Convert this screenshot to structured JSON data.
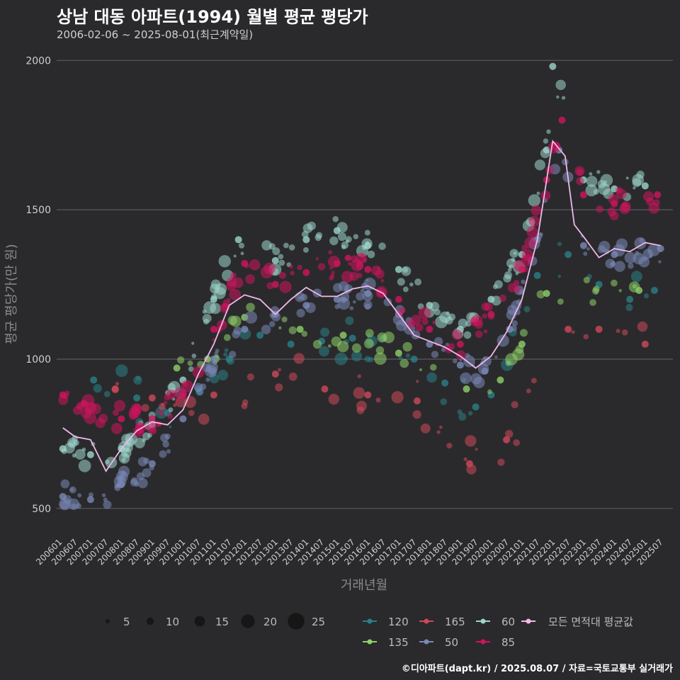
{
  "title": "상남 대동 아파트(1994) 월별 평균 평당가",
  "subtitle": "2006-02-06 ~ 2025-08-01(최근계약일)",
  "credit": "©디아파트(dapt.kr) / 2025.08.07 / 자료=국토교통부 실거래가",
  "chart_data": {
    "type": "scatter",
    "title": "상남 대동 아파트(1994) 월별 평균 평당가",
    "xlabel": "거래년월",
    "ylabel": "평균 평당가(만 원)",
    "ylim": [
      400,
      2060
    ],
    "yticks": [
      500,
      1000,
      1500,
      2000
    ],
    "xticks": [
      "200601",
      "200607",
      "200701",
      "200707",
      "200801",
      "200807",
      "200901",
      "200907",
      "201001",
      "201007",
      "201101",
      "201107",
      "201201",
      "201207",
      "201301",
      "201307",
      "201401",
      "201407",
      "201501",
      "201507",
      "201601",
      "201607",
      "201701",
      "201707",
      "201801",
      "201807",
      "201901",
      "201907",
      "202001",
      "202007",
      "202101",
      "202107",
      "202201",
      "202207",
      "202301",
      "202307",
      "202401",
      "202407",
      "202501",
      "202507"
    ],
    "size_legend": [
      5,
      10,
      15,
      20,
      25
    ],
    "series": [
      {
        "name": "120",
        "color": "#2a7f88",
        "values": [
          [
            2007.1,
            930
          ],
          [
            2008.5,
            870
          ],
          [
            2009.5,
            820
          ],
          [
            2010.5,
            900
          ],
          [
            2011.5,
            1000
          ],
          [
            2012.5,
            1080
          ],
          [
            2013.5,
            1050
          ],
          [
            2014.5,
            1060
          ],
          [
            2015.5,
            1070
          ],
          [
            2016.5,
            1070
          ],
          [
            2017.5,
            1000
          ],
          [
            2018.5,
            920
          ],
          [
            2019.5,
            840
          ],
          [
            2020.0,
            880
          ],
          [
            2021.5,
            1280
          ],
          [
            2022.5,
            1350
          ],
          [
            2023.5,
            1250
          ],
          [
            2024.5,
            1200
          ],
          [
            2025.3,
            1230
          ]
        ]
      },
      {
        "name": "135",
        "color": "#8fd16a",
        "values": [
          [
            2009.8,
            970
          ],
          [
            2010.8,
            1000
          ],
          [
            2012.0,
            1140
          ],
          [
            2013.8,
            1100
          ],
          [
            2015.2,
            1080
          ],
          [
            2017.0,
            1020
          ],
          [
            2019.2,
            900
          ],
          [
            2020.3,
            930
          ],
          [
            2021.0,
            1050
          ],
          [
            2021.8,
            1220
          ],
          [
            2024.8,
            1230
          ]
        ]
      },
      {
        "name": "165",
        "color": "#d0485a",
        "values": [
          [
            2007.8,
            900
          ],
          [
            2009.0,
            870
          ],
          [
            2011.0,
            880
          ],
          [
            2013.0,
            950
          ],
          [
            2014.6,
            900
          ],
          [
            2016.0,
            880
          ],
          [
            2017.6,
            860
          ],
          [
            2019.3,
            650
          ],
          [
            2020.5,
            730
          ],
          [
            2022.5,
            1100
          ],
          [
            2023.5,
            1100
          ],
          [
            2025.0,
            1050
          ]
        ]
      },
      {
        "name": "50",
        "color": "#7a88b8",
        "values": [
          [
            2006.1,
            540
          ],
          [
            2007.0,
            530
          ],
          [
            2008.0,
            580
          ],
          [
            2009.0,
            650
          ],
          [
            2010.0,
            800
          ],
          [
            2011.0,
            1000
          ],
          [
            2012.0,
            1100
          ],
          [
            2013.0,
            1150
          ],
          [
            2014.0,
            1180
          ],
          [
            2015.0,
            1200
          ],
          [
            2016.0,
            1220
          ],
          [
            2017.0,
            1150
          ],
          [
            2018.0,
            1050
          ],
          [
            2019.0,
            980
          ],
          [
            2019.8,
            960
          ],
          [
            2020.6,
            1100
          ],
          [
            2021.5,
            1400
          ],
          [
            2022.2,
            1700
          ],
          [
            2023.0,
            1380
          ],
          [
            2024.0,
            1350
          ],
          [
            2025.5,
            1370
          ]
        ]
      },
      {
        "name": "60",
        "color": "#9cd6cc",
        "values": [
          [
            2006.1,
            700
          ],
          [
            2007.0,
            680
          ],
          [
            2008.0,
            700
          ],
          [
            2009.0,
            780
          ],
          [
            2010.0,
            930
          ],
          [
            2011.0,
            1200
          ],
          [
            2011.8,
            1400
          ],
          [
            2013.0,
            1330
          ],
          [
            2014.0,
            1400
          ],
          [
            2015.0,
            1430
          ],
          [
            2016.0,
            1380
          ],
          [
            2017.0,
            1300
          ],
          [
            2018.0,
            1180
          ],
          [
            2019.0,
            1100
          ],
          [
            2020.0,
            1200
          ],
          [
            2021.0,
            1350
          ],
          [
            2021.8,
            1700
          ],
          [
            2022.0,
            1980
          ],
          [
            2023.0,
            1600
          ],
          [
            2024.0,
            1570
          ],
          [
            2025.0,
            1580
          ]
        ]
      },
      {
        "name": "85",
        "color": "#d0145e",
        "values": [
          [
            2006.1,
            880
          ],
          [
            2006.8,
            850
          ],
          [
            2008.0,
            800
          ],
          [
            2009.0,
            800
          ],
          [
            2010.0,
            880
          ],
          [
            2011.0,
            1100
          ],
          [
            2012.0,
            1320
          ],
          [
            2013.0,
            1250
          ],
          [
            2014.0,
            1290
          ],
          [
            2015.0,
            1320
          ],
          [
            2016.0,
            1300
          ],
          [
            2017.0,
            1200
          ],
          [
            2018.0,
            1100
          ],
          [
            2019.0,
            1050
          ],
          [
            2020.0,
            1150
          ],
          [
            2021.0,
            1300
          ],
          [
            2021.8,
            1600
          ],
          [
            2022.3,
            1800
          ],
          [
            2023.0,
            1550
          ],
          [
            2024.0,
            1520
          ],
          [
            2025.4,
            1550
          ]
        ]
      }
    ],
    "average": {
      "name": "모든 면적대 평균값",
      "color": "#f0b8ec",
      "values": [
        [
          2006.1,
          770
        ],
        [
          2006.5,
          740
        ],
        [
          2007.0,
          730
        ],
        [
          2007.5,
          625
        ],
        [
          2008.0,
          700
        ],
        [
          2008.5,
          760
        ],
        [
          2009.0,
          790
        ],
        [
          2009.5,
          780
        ],
        [
          2010.0,
          830
        ],
        [
          2010.5,
          950
        ],
        [
          2011.0,
          1050
        ],
        [
          2011.5,
          1180
        ],
        [
          2012.0,
          1215
        ],
        [
          2012.5,
          1200
        ],
        [
          2013.0,
          1150
        ],
        [
          2013.5,
          1200
        ],
        [
          2014.0,
          1240
        ],
        [
          2014.5,
          1210
        ],
        [
          2015.0,
          1210
        ],
        [
          2015.5,
          1235
        ],
        [
          2016.0,
          1245
        ],
        [
          2016.5,
          1220
        ],
        [
          2017.0,
          1150
        ],
        [
          2017.5,
          1080
        ],
        [
          2018.0,
          1060
        ],
        [
          2018.5,
          1040
        ],
        [
          2019.0,
          1010
        ],
        [
          2019.5,
          970
        ],
        [
          2020.0,
          1010
        ],
        [
          2020.5,
          1090
        ],
        [
          2021.0,
          1200
        ],
        [
          2021.5,
          1400
        ],
        [
          2022.0,
          1730
        ],
        [
          2022.4,
          1680
        ],
        [
          2022.7,
          1450
        ],
        [
          2023.0,
          1410
        ],
        [
          2023.5,
          1340
        ],
        [
          2024.0,
          1370
        ],
        [
          2024.5,
          1360
        ],
        [
          2025.0,
          1390
        ],
        [
          2025.5,
          1380
        ]
      ]
    }
  }
}
